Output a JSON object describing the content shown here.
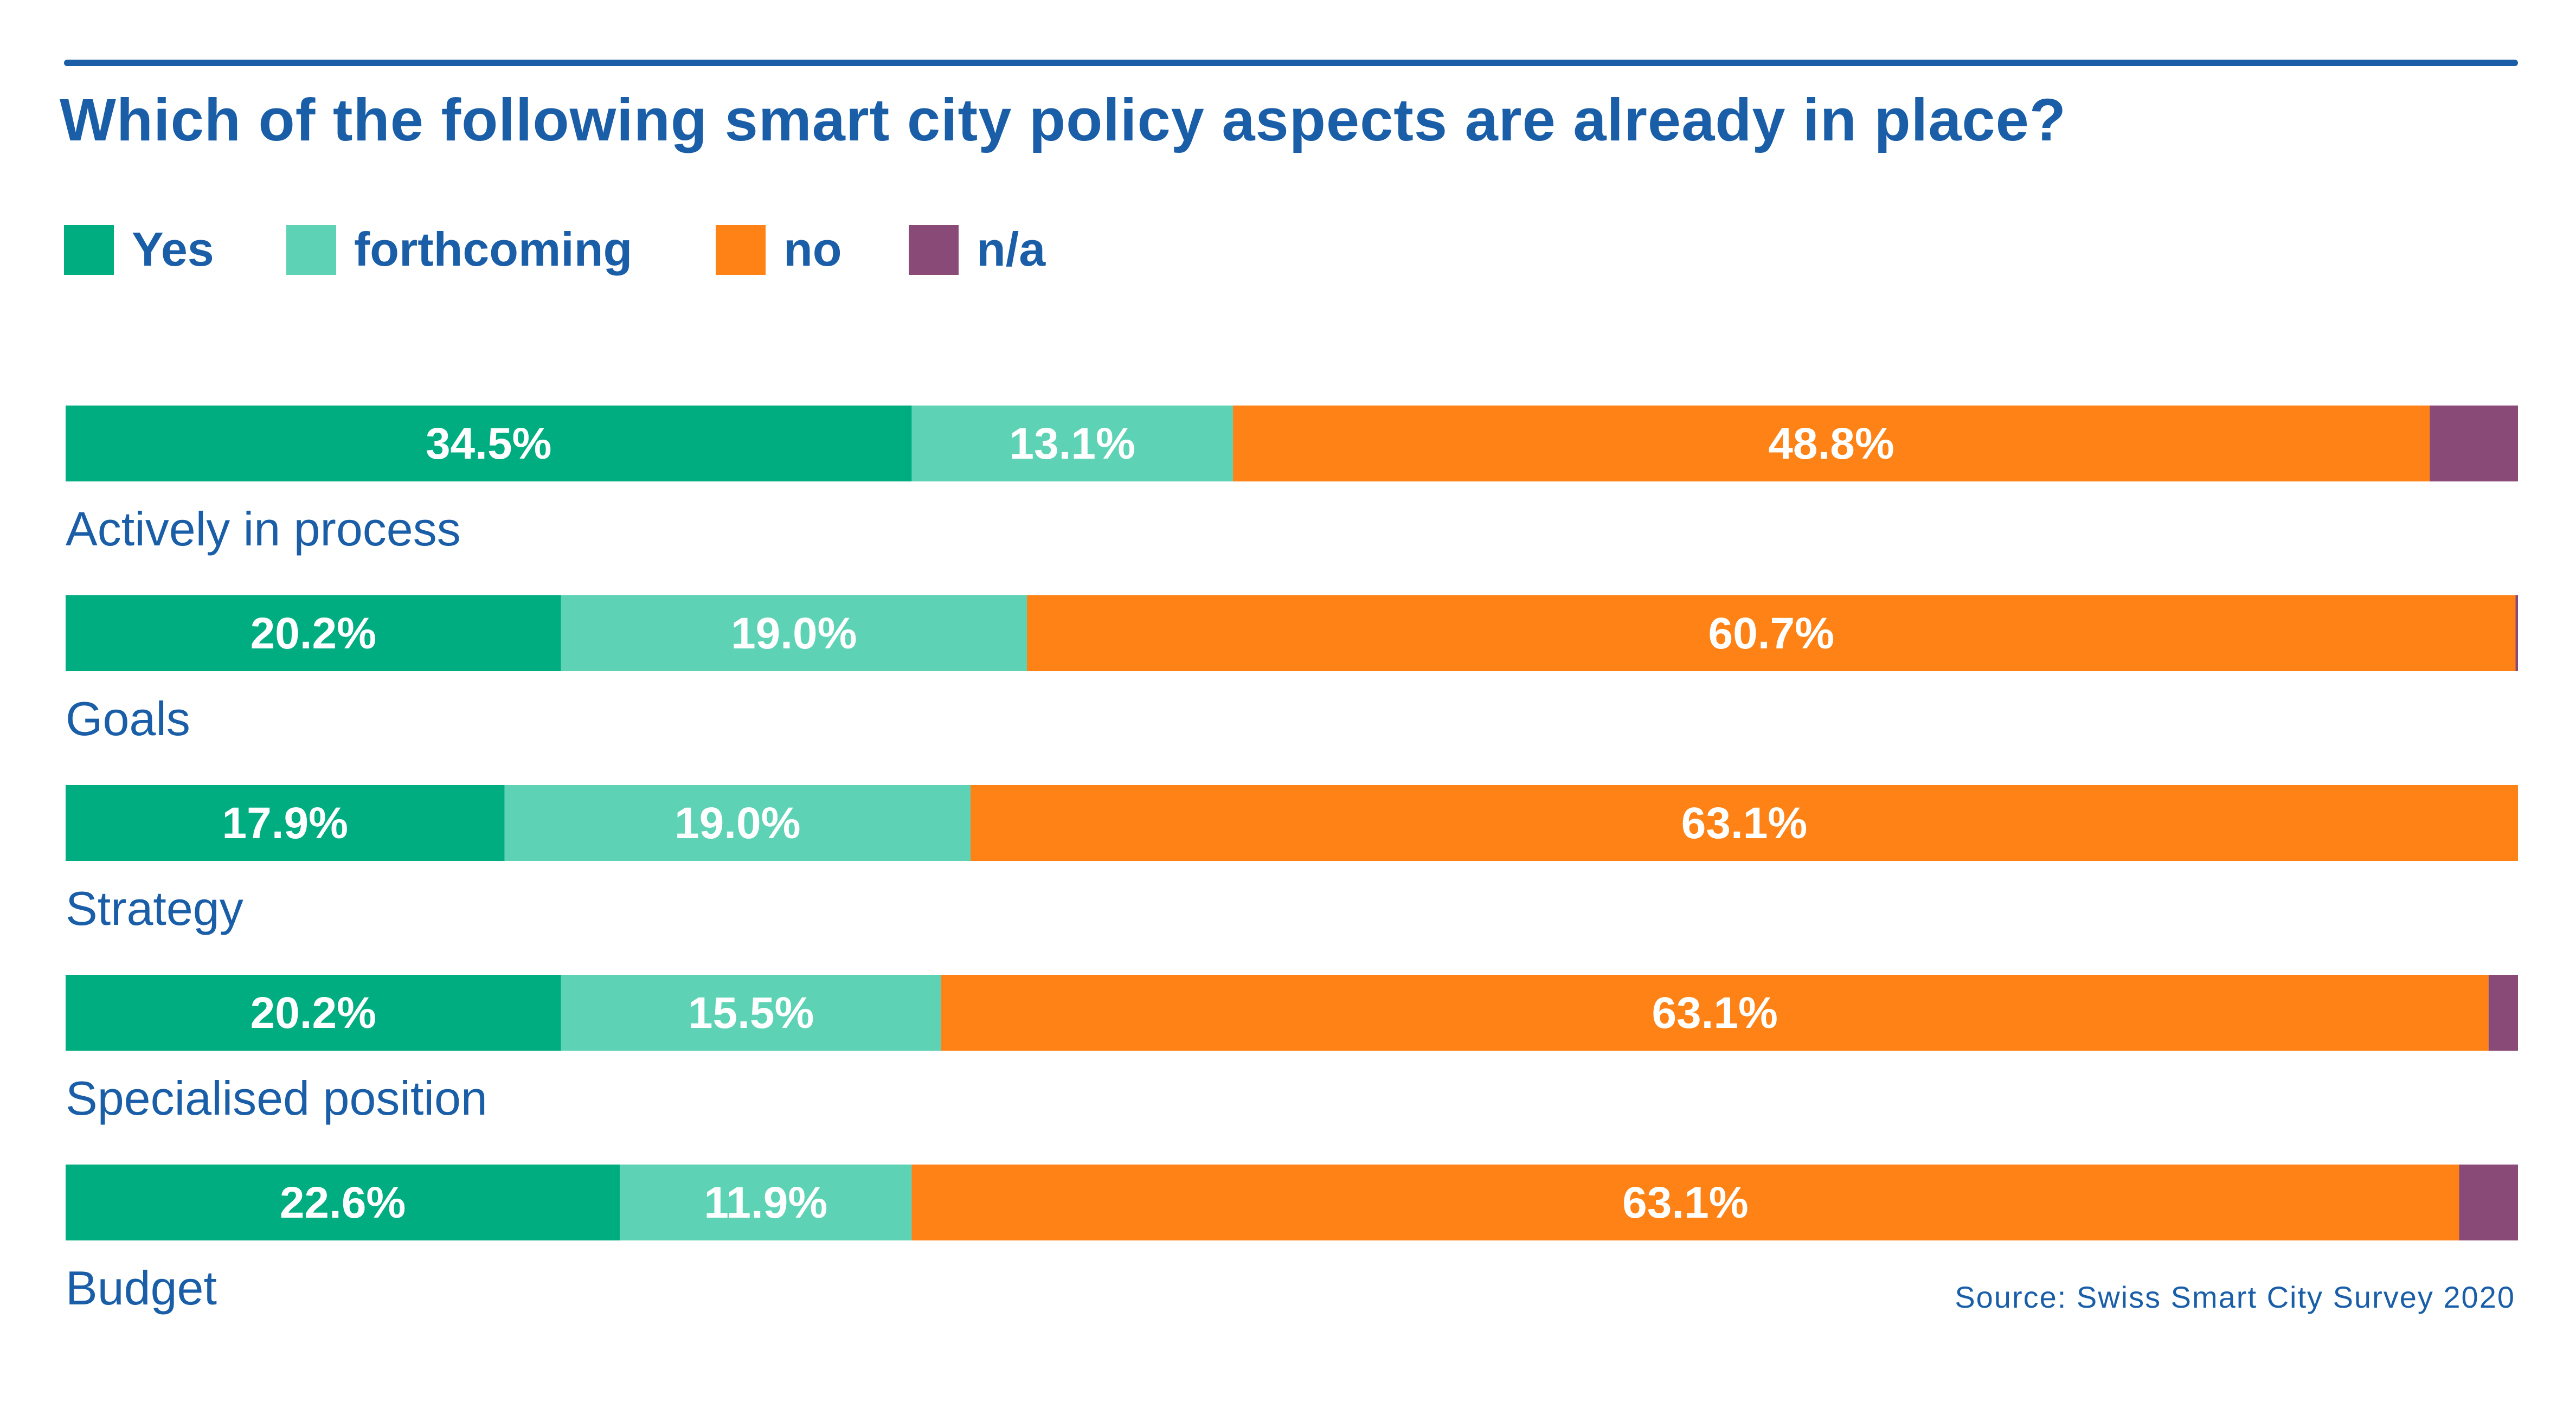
{
  "chart_data": {
    "type": "bar",
    "orientation": "horizontal",
    "stacked": true,
    "title": "Which of the following smart city policy aspects are already in place?",
    "source": "Source: Swiss Smart City Survey 2020",
    "legend_placement": "top-left",
    "grid": false,
    "xlim": [
      0,
      100
    ],
    "categories": [
      "Actively in process",
      "Goals",
      "Strategy",
      "Specialised position",
      "Budget"
    ],
    "series": [
      {
        "name": "Yes",
        "color": "#00ad80",
        "values": [
          34.5,
          20.2,
          17.9,
          20.2,
          22.6
        ],
        "labels": [
          "34.5%",
          "20.2%",
          "17.9%",
          "20.2%",
          "22.6%"
        ]
      },
      {
        "name": "forthcoming",
        "color": "#5dd2b4",
        "values": [
          13.1,
          19.0,
          19.0,
          15.5,
          11.9
        ],
        "labels": [
          "13.1%",
          "19.0%",
          "19.0%",
          "15.5%",
          "11.9%"
        ]
      },
      {
        "name": "no",
        "color": "#fe8215",
        "values": [
          48.8,
          60.7,
          63.1,
          63.1,
          63.1
        ],
        "labels": [
          "48.8%",
          "60.7%",
          "63.1%",
          "63.1%",
          "63.1%"
        ]
      },
      {
        "name": "n/a",
        "color": "#8a4a77",
        "values": [
          3.6,
          0.1,
          0.0,
          1.2,
          2.4
        ],
        "labels": [
          "",
          "",
          "",
          "",
          ""
        ]
      }
    ]
  }
}
